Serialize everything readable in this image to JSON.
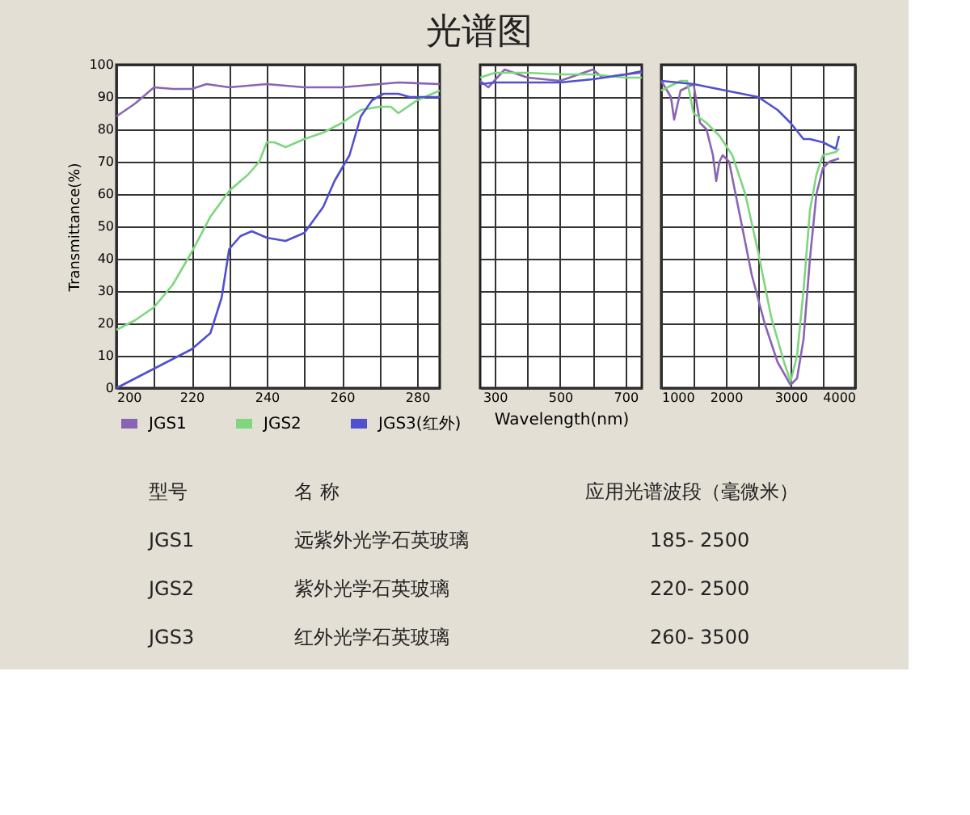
{
  "chart_data": [
    {
      "type": "line",
      "title": "光谱图",
      "ylabel": "Transmittance(%)",
      "xlim": [
        200,
        286
      ],
      "ylim": [
        0,
        100
      ],
      "xticks": [
        200,
        {
          "value": 210,
          "label": null
        },
        220,
        {
          "value": 230,
          "label": null
        },
        240,
        {
          "value": 250,
          "label": null
        },
        260,
        {
          "value": 270,
          "label": null
        },
        280
      ],
      "yticks": [
        0,
        10,
        20,
        30,
        40,
        50,
        60,
        70,
        80,
        90,
        100
      ],
      "grid": true,
      "legend": "bottom",
      "series": [
        {
          "name": "JGS1",
          "color": "#8a64b4",
          "x": [
            200,
            205,
            210,
            215,
            220,
            224,
            230,
            240,
            250,
            260,
            270,
            275,
            286
          ],
          "values": [
            84,
            88,
            93,
            92.5,
            92.5,
            94,
            93,
            94,
            93,
            93,
            94,
            94.5,
            94
          ]
        },
        {
          "name": "JGS2",
          "color": "#7ed67e",
          "x": [
            200,
            205,
            210,
            215,
            220,
            225,
            230,
            235,
            238,
            240,
            242,
            245,
            250,
            255,
            260,
            265,
            270,
            273,
            275,
            280,
            286
          ],
          "values": [
            18,
            21,
            25,
            32,
            42,
            53,
            61,
            66,
            70,
            76,
            76,
            74.5,
            77,
            79,
            82,
            86,
            87,
            87,
            85,
            89,
            92
          ]
        },
        {
          "name": "JGS3(红外)",
          "color": "#5050d0",
          "x": [
            200,
            205,
            210,
            215,
            220,
            225,
            228,
            230,
            233,
            236,
            240,
            245,
            250,
            255,
            258,
            262,
            265,
            268,
            271,
            275,
            278,
            286
          ],
          "values": [
            0,
            3,
            6,
            9,
            12,
            17,
            28,
            43,
            47,
            48.5,
            46.5,
            45.5,
            48,
            56,
            64,
            72,
            84,
            89,
            91,
            91,
            90,
            90
          ]
        }
      ]
    },
    {
      "type": "line",
      "xlabel": "Wavelength(nm)",
      "xlim": [
        255,
        750
      ],
      "ylim": [
        0,
        100
      ],
      "xticks": [
        300,
        {
          "value": 400,
          "label": null
        },
        500,
        {
          "value": 600,
          "label": null
        },
        700
      ],
      "yticks": [
        0,
        10,
        20,
        30,
        40,
        50,
        60,
        70,
        80,
        90,
        100
      ],
      "grid": true,
      "tick_labels": "x",
      "series": [
        {
          "color": "#8a64b4",
          "x": [
            255,
            280,
            330,
            400,
            500,
            600,
            630,
            700,
            750
          ],
          "values": [
            95,
            93,
            98.5,
            96,
            95,
            98.5,
            96,
            97,
            97.5
          ]
        },
        {
          "color": "#7ed67e",
          "x": [
            255,
            300,
            400,
            500,
            600,
            700,
            750
          ],
          "values": [
            96,
            97.5,
            97.5,
            97,
            97,
            96,
            96
          ]
        },
        {
          "color": "#5050d0",
          "x": [
            255,
            300,
            400,
            500,
            600,
            700,
            750
          ],
          "values": [
            94,
            94.5,
            94.5,
            94.5,
            95.5,
            97,
            98
          ]
        }
      ]
    },
    {
      "type": "line",
      "xlim": [
        1000,
        4000
      ],
      "ylim": [
        0,
        100
      ],
      "xticks": [
        1000,
        {
          "value": 1500,
          "label": null
        },
        2000,
        {
          "value": 2500,
          "label": null
        },
        3000,
        {
          "value": 3500,
          "label": null
        },
        4000
      ],
      "yticks": [
        0,
        10,
        20,
        30,
        40,
        50,
        60,
        70,
        80,
        90,
        100
      ],
      "grid": true,
      "tick_labels": "x",
      "series": [
        {
          "color": "#8a64b4",
          "x": [
            1000,
            1150,
            1200,
            1300,
            1500,
            1600,
            1700,
            1800,
            1850,
            1900,
            1950,
            2050,
            2200,
            2400,
            2600,
            2800,
            3000,
            3100,
            3200,
            3300,
            3400,
            3500,
            3600,
            3750
          ],
          "values": [
            95,
            90,
            83,
            92,
            94,
            82,
            80,
            72,
            64,
            70,
            72,
            70,
            55,
            35,
            20,
            8,
            1,
            3,
            15,
            40,
            60,
            68,
            70,
            71
          ]
        },
        {
          "color": "#7ed67e",
          "x": [
            1000,
            1300,
            1400,
            1500,
            1700,
            1900,
            2100,
            2300,
            2500,
            2700,
            2900,
            3000,
            3100,
            3200,
            3300,
            3400,
            3500,
            3700,
            3750
          ],
          "values": [
            92,
            95,
            95,
            85,
            82,
            78,
            72,
            60,
            42,
            22,
            8,
            2,
            10,
            30,
            55,
            66,
            72,
            73,
            74
          ]
        },
        {
          "color": "#5050d0",
          "x": [
            1000,
            1500,
            2000,
            2500,
            2800,
            3000,
            3200,
            3300,
            3500,
            3600,
            3700,
            3750
          ],
          "values": [
            95,
            94,
            92,
            90,
            86,
            82,
            77,
            77,
            76,
            75,
            74,
            78
          ]
        }
      ]
    },
    {
      "type": "other",
      "annotations": [
        "型号",
        "名 称",
        "应用光谱波段（毫微米）",
        "JGS1",
        "远紫外光学石英玻璃",
        "185- 2500",
        "JGS2",
        "紫外光学石英玻璃",
        "220- 2500",
        "JGS3",
        "红外光学石英玻璃",
        "260- 3500"
      ]
    }
  ]
}
